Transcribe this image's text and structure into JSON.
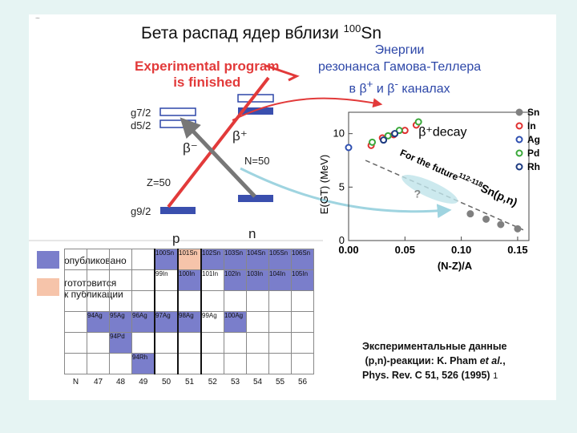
{
  "title": {
    "main": "Бета распад ядер вблизи ",
    "sup": "100",
    "tail": "Sn"
  },
  "experimental": {
    "line1": "Experimental program",
    "line2": "is finished"
  },
  "gt_resonance": {
    "line1": "Энергии",
    "line2": "резонанса Гамова-Теллера",
    "line3": "в β",
    "sup_plus": "+",
    "mid": " и β",
    "sup_minus": "-",
    "end": " каналах"
  },
  "levels": {
    "g72": "g7/2",
    "d52": "d5/2",
    "g92": "g9/2",
    "z50": "Z=50",
    "n50": "N=50",
    "beta_minus": "β⁻",
    "beta_plus": "β⁺",
    "p": "p",
    "n": "n"
  },
  "legend": {
    "published": "опубликовано",
    "preparing_1": "гототовится",
    "preparing_2": "к публикации"
  },
  "reference": {
    "line1": "Экспериментальные данные",
    "line2a": "(p,n)-реакции: K. Pham ",
    "line2b": "et al.",
    "line2c": ",",
    "line3": "Phys. Rev. C 51, 526 (1995)",
    "mark": "1"
  },
  "nuclide_table": {
    "n_labels": [
      "N",
      "47",
      "48",
      "49",
      "50",
      "51",
      "52",
      "53",
      "54",
      "55",
      "56"
    ],
    "rows": [
      {
        "cells": [
          {
            "t": "",
            "c": ""
          },
          {
            "t": "",
            "c": ""
          },
          {
            "t": "",
            "c": ""
          },
          {
            "t": "",
            "c": ""
          },
          {
            "t": "100Sn",
            "c": "pub"
          },
          {
            "t": "101Sn",
            "c": "prep"
          },
          {
            "t": "102Sn",
            "c": "pub"
          },
          {
            "t": "103Sn",
            "c": "pub"
          },
          {
            "t": "104Sn",
            "c": "pub"
          },
          {
            "t": "105Sn",
            "c": "pub"
          },
          {
            "t": "106Sn",
            "c": "pub"
          }
        ]
      },
      {
        "cells": [
          {
            "t": "",
            "c": ""
          },
          {
            "t": "",
            "c": ""
          },
          {
            "t": "",
            "c": ""
          },
          {
            "t": "",
            "c": ""
          },
          {
            "t": "99In",
            "c": ""
          },
          {
            "t": "100In",
            "c": "pub"
          },
          {
            "t": "101In",
            "c": ""
          },
          {
            "t": "102In",
            "c": "pub"
          },
          {
            "t": "103In",
            "c": "pub"
          },
          {
            "t": "104In",
            "c": "pub"
          },
          {
            "t": "105In",
            "c": "pub"
          }
        ]
      },
      {
        "cells": [
          {
            "t": "",
            "c": ""
          },
          {
            "t": "",
            "c": ""
          },
          {
            "t": "",
            "c": ""
          },
          {
            "t": "",
            "c": ""
          },
          {
            "t": "",
            "c": ""
          },
          {
            "t": "",
            "c": ""
          },
          {
            "t": "",
            "c": ""
          },
          {
            "t": "",
            "c": ""
          },
          {
            "t": "",
            "c": ""
          },
          {
            "t": "",
            "c": ""
          },
          {
            "t": "",
            "c": ""
          }
        ]
      },
      {
        "cells": [
          {
            "t": "",
            "c": ""
          },
          {
            "t": "94Ag",
            "c": "pub"
          },
          {
            "t": "95Ag",
            "c": "pub"
          },
          {
            "t": "96Ag",
            "c": "pub"
          },
          {
            "t": "97Ag",
            "c": "pub"
          },
          {
            "t": "98Ag",
            "c": "pub"
          },
          {
            "t": "99Ag",
            "c": ""
          },
          {
            "t": "100Ag",
            "c": "pub"
          },
          {
            "t": "",
            "c": ""
          },
          {
            "t": "",
            "c": ""
          },
          {
            "t": "",
            "c": ""
          }
        ]
      },
      {
        "cells": [
          {
            "t": "",
            "c": ""
          },
          {
            "t": "",
            "c": ""
          },
          {
            "t": "94Pd",
            "c": "pub"
          },
          {
            "t": "",
            "c": ""
          },
          {
            "t": "",
            "c": ""
          },
          {
            "t": "",
            "c": ""
          },
          {
            "t": "",
            "c": ""
          },
          {
            "t": "",
            "c": ""
          },
          {
            "t": "",
            "c": ""
          },
          {
            "t": "",
            "c": ""
          },
          {
            "t": "",
            "c": ""
          }
        ]
      },
      {
        "cells": [
          {
            "t": "",
            "c": ""
          },
          {
            "t": "",
            "c": ""
          },
          {
            "t": "",
            "c": ""
          },
          {
            "t": "94Rh",
            "c": "pub"
          },
          {
            "t": "",
            "c": ""
          },
          {
            "t": "",
            "c": ""
          },
          {
            "t": "",
            "c": ""
          },
          {
            "t": "",
            "c": ""
          },
          {
            "t": "",
            "c": ""
          },
          {
            "t": "",
            "c": ""
          },
          {
            "t": "",
            "c": ""
          }
        ]
      }
    ]
  },
  "chart_data": {
    "type": "scatter",
    "xlabel": "(N-Z)/A",
    "ylabel": "E(GT) (MeV)",
    "xlim": [
      0.0,
      0.16
    ],
    "ylim": [
      0,
      12
    ],
    "xticks": [
      "0.00",
      "0.05",
      "0.10",
      "0.15"
    ],
    "yticks": [
      "0",
      "5",
      "10"
    ],
    "annotation_decay": "β⁺decay",
    "annotation_future": "For the future",
    "annotation_future_sup": "112-118",
    "annotation_future_tail": "Sn(p,n)",
    "annotation_q": "?",
    "legend": [
      "Sn",
      "In",
      "Ag",
      "Pd",
      "Rh"
    ],
    "colors": {
      "Sn": "#808080",
      "In": "#e03030",
      "Ag": "#2e4fb0",
      "Pd": "#3aa83a",
      "Rh": "#1c3a80"
    },
    "series": [
      {
        "name": "Sn",
        "filled": true,
        "x": [
          0.108,
          0.122,
          0.135,
          0.15
        ],
        "y": [
          2.5,
          2.0,
          1.5,
          1.1
        ]
      },
      {
        "name": "In",
        "filled": false,
        "x": [
          0.02,
          0.03,
          0.04,
          0.05,
          0.06
        ],
        "y": [
          8.9,
          9.6,
          9.9,
          10.3,
          10.8
        ]
      },
      {
        "name": "Ag",
        "filled": false,
        "x": [
          0.0
        ],
        "y": [
          8.7
        ]
      },
      {
        "name": "Pd",
        "filled": false,
        "x": [
          0.021,
          0.035,
          0.045,
          0.062
        ],
        "y": [
          9.2,
          9.8,
          10.3,
          11.1
        ]
      },
      {
        "name": "Rh",
        "filled": false,
        "x": [
          0.031,
          0.041
        ],
        "y": [
          9.4,
          10.0
        ]
      }
    ],
    "trend": {
      "x": [
        0.015,
        0.155
      ],
      "y": [
        7.5,
        1.0
      ]
    }
  }
}
